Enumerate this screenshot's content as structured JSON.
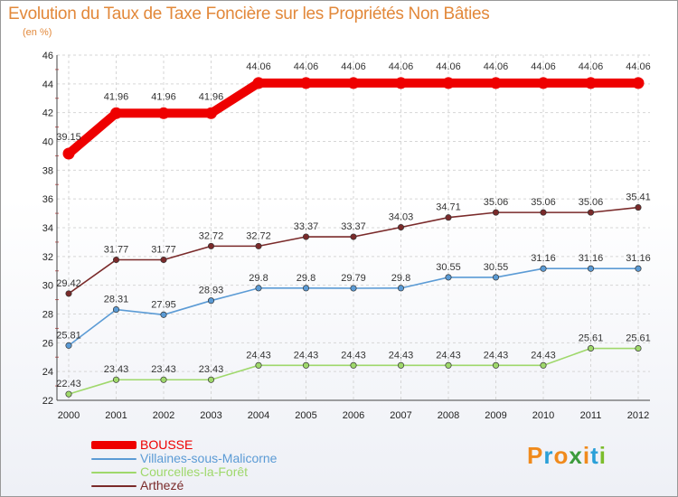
{
  "title": "Evolution du Taux de Taxe Foncière sur les Propriétés Non Bâties",
  "subtitle": "(en %)",
  "logo": {
    "letters": [
      "P",
      "r",
      "o",
      "x",
      "i",
      "t",
      "i"
    ],
    "colors": [
      "#f08a1c",
      "#2aa0d8",
      "#f08a1c",
      "#3c9b3c",
      "#f08a1c",
      "#2aa0d8",
      "#7cbd2c"
    ]
  },
  "chart_data": {
    "type": "line",
    "title": "Evolution du Taux de Taxe Foncière sur les Propriétés Non Bâties",
    "ylabel": "(en %)",
    "xlabel": "",
    "x": [
      "2000",
      "2001",
      "2002",
      "2003",
      "2004",
      "2005",
      "2006",
      "2007",
      "2008",
      "2009",
      "2010",
      "2011",
      "2012"
    ],
    "ylim": [
      22,
      46
    ],
    "yticks": [
      22,
      24,
      26,
      28,
      30,
      32,
      34,
      36,
      38,
      40,
      42,
      44,
      46
    ],
    "grid": true,
    "legend_position": "bottom-left",
    "series": [
      {
        "name": "BOUSSE",
        "color": "#ee0000",
        "emphasis": true,
        "values": [
          39.15,
          41.96,
          41.96,
          41.96,
          44.06,
          44.06,
          44.06,
          44.06,
          44.06,
          44.06,
          44.06,
          44.06,
          44.06
        ],
        "labels": [
          "39.15",
          "41.96",
          "41.96",
          "41.96",
          "44.06",
          "44.06",
          "44.06",
          "44.06",
          "44.06",
          "44.06",
          "44.06",
          "44.06",
          "44.06"
        ]
      },
      {
        "name": "Villaines-sous-Malicorne",
        "color": "#5b9bd5",
        "emphasis": false,
        "values": [
          25.81,
          28.31,
          27.95,
          28.93,
          29.8,
          29.8,
          29.79,
          29.8,
          30.55,
          30.55,
          31.16,
          31.16,
          31.16
        ],
        "labels": [
          "25.81",
          "28.31",
          "27.95",
          "28.93",
          "29.8",
          "29.8",
          "29.79",
          "29.8",
          "30.55",
          "30.55",
          "31.16",
          "31.16",
          "31.16"
        ]
      },
      {
        "name": "Courcelles-la-Forêt",
        "color": "#9fd86b",
        "emphasis": false,
        "values": [
          22.43,
          23.43,
          23.43,
          23.43,
          24.43,
          24.43,
          24.43,
          24.43,
          24.43,
          24.43,
          24.43,
          25.61,
          25.61
        ],
        "labels": [
          "22.43",
          "23.43",
          "23.43",
          "23.43",
          "24.43",
          "24.43",
          "24.43",
          "24.43",
          "24.43",
          "24.43",
          "24.43",
          "25.61",
          "25.61"
        ]
      },
      {
        "name": "Arthezé",
        "color": "#7a2a2a",
        "emphasis": false,
        "values": [
          29.42,
          31.77,
          31.77,
          32.72,
          32.72,
          33.37,
          33.37,
          34.03,
          34.71,
          35.06,
          35.06,
          35.06,
          35.41
        ],
        "labels": [
          "29.42",
          "31.77",
          "31.77",
          "32.72",
          "32.72",
          "33.37",
          "33.37",
          "34.03",
          "34.71",
          "35.06",
          "35.06",
          "35.06",
          "35.41"
        ]
      }
    ]
  }
}
